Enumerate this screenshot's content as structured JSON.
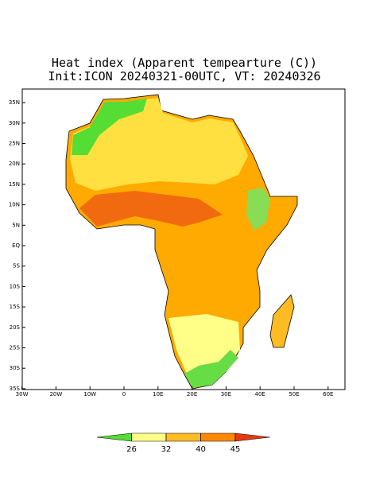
{
  "title": "Heat index (Apparent tempearture (C))",
  "subtitle": "Init:ICON 20240321-00UTC, VT: 20240326",
  "map": {
    "lat_ticks": [
      {
        "value": 35,
        "label": "35N"
      },
      {
        "value": 30,
        "label": "30N"
      },
      {
        "value": 25,
        "label": "25N"
      },
      {
        "value": 20,
        "label": "20N"
      },
      {
        "value": 15,
        "label": "15N"
      },
      {
        "value": 10,
        "label": "10N"
      },
      {
        "value": 5,
        "label": "5N"
      },
      {
        "value": 0,
        "label": "EQ"
      },
      {
        "value": -5,
        "label": "5S"
      },
      {
        "value": -10,
        "label": "10S"
      },
      {
        "value": -15,
        "label": "15S"
      },
      {
        "value": -20,
        "label": "20S"
      },
      {
        "value": -25,
        "label": "25S"
      },
      {
        "value": -30,
        "label": "30S"
      },
      {
        "value": -35,
        "label": "35S"
      }
    ],
    "lon_ticks": [
      {
        "value": -30,
        "label": "30W"
      },
      {
        "value": -20,
        "label": "20W"
      },
      {
        "value": -10,
        "label": "10W"
      },
      {
        "value": 0,
        "label": "0"
      },
      {
        "value": 10,
        "label": "10E"
      },
      {
        "value": 20,
        "label": "20E"
      },
      {
        "value": 30,
        "label": "30E"
      },
      {
        "value": 40,
        "label": "40E"
      },
      {
        "value": 50,
        "label": "50E"
      },
      {
        "value": 60,
        "label": "60E"
      }
    ]
  },
  "colorbar": {
    "levels": [
      26,
      32,
      40,
      45
    ],
    "colors": [
      "#55dd33",
      "#ffff88",
      "#ffbb22",
      "#ff8800",
      "#e83a10"
    ]
  }
}
